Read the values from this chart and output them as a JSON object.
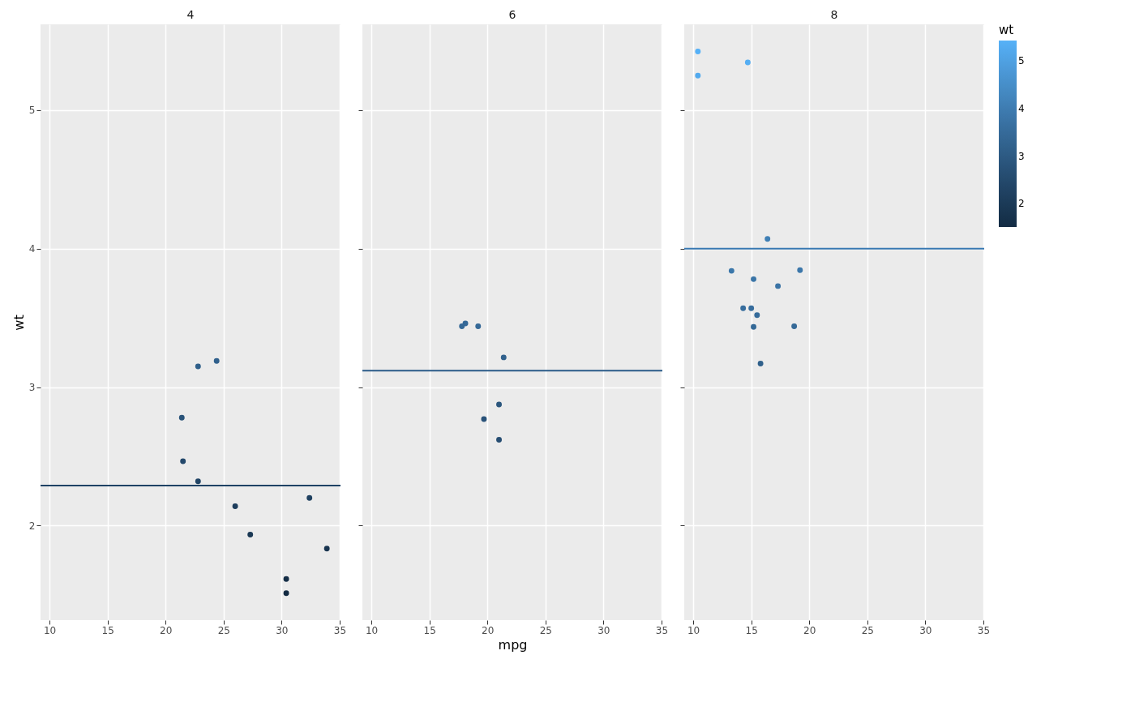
{
  "chart_data": [
    {
      "type": "scatter",
      "title": "4",
      "ylabel": "wt",
      "x": [
        22.8,
        24.4,
        22.8,
        32.4,
        30.4,
        33.9,
        21.5,
        27.3,
        26.0,
        30.4,
        21.4
      ],
      "values": [
        2.32,
        3.19,
        3.15,
        2.2,
        1.615,
        1.835,
        2.465,
        1.935,
        2.14,
        1.513,
        2.78
      ],
      "xlim": [
        9.225,
        35.075
      ],
      "ylim": [
        1.318,
        5.62
      ],
      "xticks": [
        10,
        15,
        20,
        25,
        30,
        35
      ],
      "yticks": [
        2,
        3,
        4,
        5
      ],
      "grid": true,
      "marker": "circle",
      "ref_lines": [
        {
          "axis": "y",
          "value": 2.29,
          "color": "#1e4264"
        }
      ]
    },
    {
      "type": "scatter",
      "title": "6",
      "xlabel": "mpg",
      "x": [
        21.0,
        21.0,
        21.4,
        18.1,
        19.2,
        17.8,
        19.7
      ],
      "values": [
        2.62,
        2.875,
        3.215,
        3.46,
        3.44,
        3.44,
        2.77
      ],
      "xlim": [
        9.225,
        35.075
      ],
      "ylim": [
        1.318,
        5.62
      ],
      "xticks": [
        10,
        15,
        20,
        25,
        30,
        35
      ],
      "yticks": [
        2,
        3,
        4,
        5
      ],
      "grid": true,
      "marker": "circle",
      "tick_labels": "x",
      "ref_lines": [
        {
          "axis": "y",
          "value": 3.12,
          "color": "#2a5b88"
        }
      ]
    },
    {
      "type": "scatter",
      "title": "8",
      "x": [
        18.7,
        14.3,
        16.4,
        17.3,
        15.2,
        10.4,
        10.4,
        14.7,
        15.5,
        15.2,
        13.3,
        19.2,
        15.8,
        15.0
      ],
      "values": [
        3.44,
        3.57,
        4.07,
        3.73,
        3.78,
        5.25,
        5.424,
        5.345,
        3.52,
        3.435,
        3.84,
        3.845,
        3.17,
        3.57
      ],
      "cvalues": [
        3.44,
        3.57,
        4.07,
        3.73,
        3.78,
        5.25,
        5.424,
        5.345,
        3.52,
        3.435,
        3.84,
        3.845,
        3.17,
        3.57
      ],
      "xlim": [
        9.225,
        35.075
      ],
      "ylim": [
        1.318,
        5.62
      ],
      "xticks": [
        10,
        15,
        20,
        25,
        30,
        35
      ],
      "yticks": [
        2,
        3,
        4,
        5
      ],
      "grid": true,
      "marker": "circle",
      "tick_labels": "x",
      "ref_lines": [
        {
          "axis": "y",
          "value": 4.0,
          "color": "#3878b2"
        }
      ],
      "clabel": "wt",
      "clim": [
        1.513,
        5.424
      ],
      "cticks": [
        2,
        3,
        4,
        5
      ]
    }
  ]
}
